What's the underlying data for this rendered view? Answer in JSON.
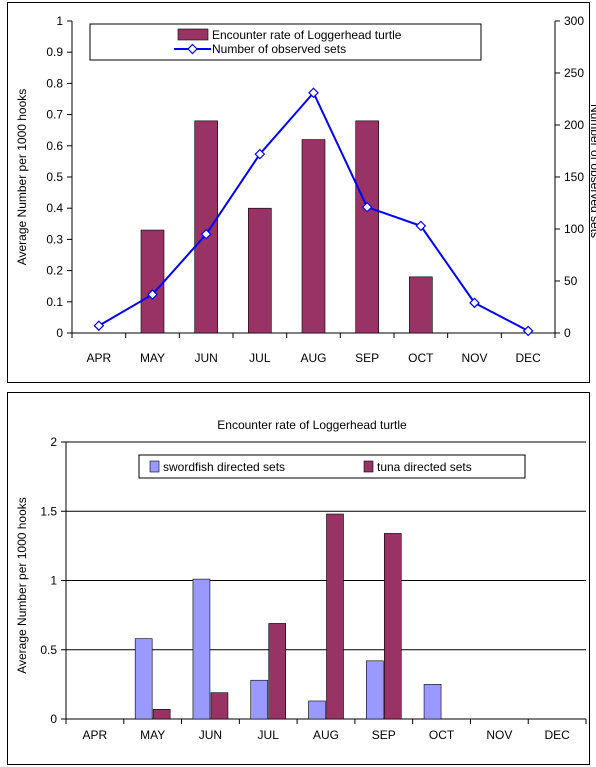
{
  "chart_data": [
    {
      "type": "bar",
      "title": "",
      "categories": [
        "APR",
        "MAY",
        "JUN",
        "JUL",
        "AUG",
        "SEP",
        "OCT",
        "NOV",
        "DEC"
      ],
      "ylabel": "Average Number per 1000 hooks",
      "y2label": "Number of observed sets",
      "ylim": [
        0,
        1
      ],
      "yticks": [
        "0",
        "0.1",
        "0.2",
        "0.3",
        "0.4",
        "0.5",
        "0.6",
        "0.7",
        "0.8",
        "0.9",
        "1"
      ],
      "y2lim": [
        0,
        300
      ],
      "y2ticks": [
        "0",
        "50",
        "100",
        "150",
        "200",
        "250",
        "300"
      ],
      "legend_position": "top",
      "series": [
        {
          "name": "Encounter rate of Loggerhead turtle",
          "kind": "bar",
          "axis": "left",
          "color": "#993366",
          "values": [
            0,
            0.33,
            0.68,
            0.4,
            0.62,
            0.68,
            0.18,
            0,
            0
          ]
        },
        {
          "name": "Number of observed sets",
          "kind": "line",
          "axis": "right",
          "color": "#0000FF",
          "marker": "diamond",
          "values": [
            7,
            37,
            95,
            172,
            231,
            121,
            103,
            29,
            2
          ]
        }
      ]
    },
    {
      "type": "bar",
      "title": "Encounter rate of Loggerhead turtle",
      "categories": [
        "APR",
        "MAY",
        "JUN",
        "JUL",
        "AUG",
        "SEP",
        "OCT",
        "NOV",
        "DEC"
      ],
      "ylabel": "Average Number per 1000 hooks",
      "ylim": [
        0,
        2
      ],
      "yticks": [
        "0",
        "0.5",
        "1",
        "1.5",
        "2"
      ],
      "grid": true,
      "legend_position": "top",
      "series": [
        {
          "name": "swordfish directed sets",
          "color": "#9999FF",
          "values": [
            0,
            0.58,
            1.01,
            0.28,
            0.13,
            0.42,
            0.25,
            0,
            0
          ]
        },
        {
          "name": "tuna directed sets",
          "color": "#993366",
          "values": [
            0,
            0.07,
            0.19,
            0.69,
            1.48,
            1.34,
            0,
            0,
            0
          ]
        }
      ]
    }
  ]
}
